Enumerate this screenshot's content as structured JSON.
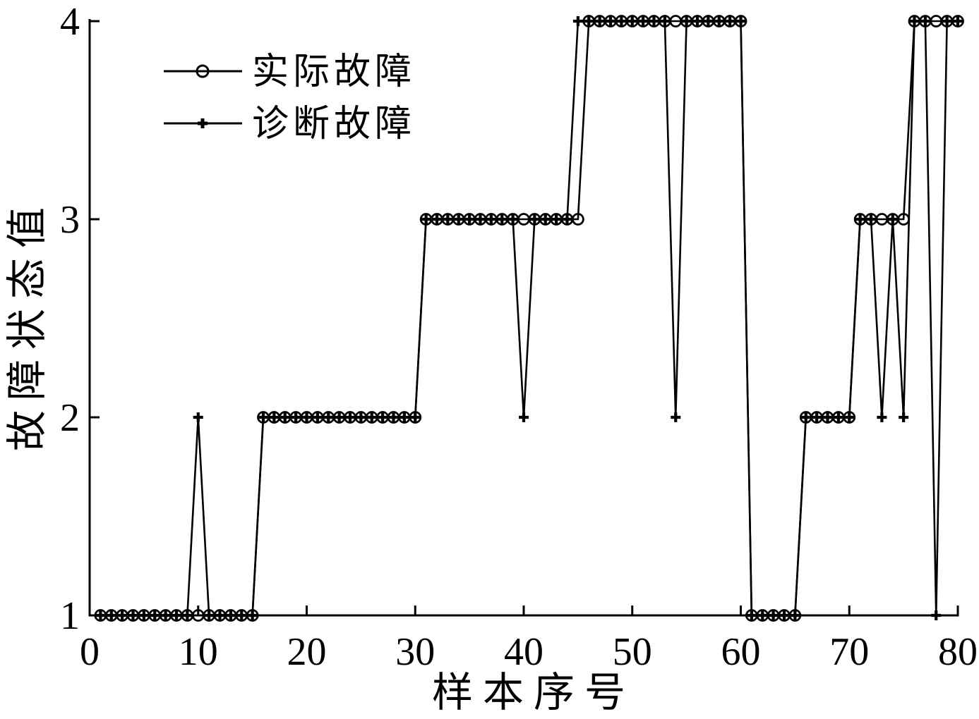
{
  "chart_data": {
    "type": "line",
    "title": "",
    "xlabel": "样本序号",
    "ylabel": "故障状态值",
    "xlim": [
      0,
      80
    ],
    "ylim": [
      1,
      4
    ],
    "x_ticks": [
      0,
      10,
      20,
      30,
      40,
      50,
      60,
      70,
      80
    ],
    "y_ticks": [
      1,
      2,
      3,
      4
    ],
    "grid": false,
    "legend_position": "top-left-inside",
    "line_color": "#000000",
    "background_color": "#ffffff",
    "x": [
      1,
      2,
      3,
      4,
      5,
      6,
      7,
      8,
      9,
      10,
      11,
      12,
      13,
      14,
      15,
      16,
      17,
      18,
      19,
      20,
      21,
      22,
      23,
      24,
      25,
      26,
      27,
      28,
      29,
      30,
      31,
      32,
      33,
      34,
      35,
      36,
      37,
      38,
      39,
      40,
      41,
      42,
      43,
      44,
      45,
      46,
      47,
      48,
      49,
      50,
      51,
      52,
      53,
      54,
      55,
      56,
      57,
      58,
      59,
      60,
      61,
      62,
      63,
      64,
      65,
      66,
      67,
      68,
      69,
      70,
      71,
      72,
      73,
      74,
      75,
      76,
      77,
      78,
      79,
      80
    ],
    "series": [
      {
        "name": "实际故障",
        "marker": "circle-marker",
        "values": [
          1,
          1,
          1,
          1,
          1,
          1,
          1,
          1,
          1,
          1,
          1,
          1,
          1,
          1,
          1,
          2,
          2,
          2,
          2,
          2,
          2,
          2,
          2,
          2,
          2,
          2,
          2,
          2,
          2,
          2,
          3,
          3,
          3,
          3,
          3,
          3,
          3,
          3,
          3,
          3,
          3,
          3,
          3,
          3,
          3,
          4,
          4,
          4,
          4,
          4,
          4,
          4,
          4,
          4,
          4,
          4,
          4,
          4,
          4,
          4,
          1,
          1,
          1,
          1,
          1,
          2,
          2,
          2,
          2,
          2,
          3,
          3,
          3,
          3,
          3,
          4,
          4,
          4,
          4,
          4
        ]
      },
      {
        "name": "诊断故障",
        "marker": "plus-marker",
        "values": [
          1,
          1,
          1,
          1,
          1,
          1,
          1,
          1,
          1,
          2,
          1,
          1,
          1,
          1,
          1,
          2,
          2,
          2,
          2,
          2,
          2,
          2,
          2,
          2,
          2,
          2,
          2,
          2,
          2,
          2,
          3,
          3,
          3,
          3,
          3,
          3,
          3,
          3,
          3,
          2,
          3,
          3,
          3,
          3,
          4,
          4,
          4,
          4,
          4,
          4,
          4,
          4,
          4,
          2,
          4,
          4,
          4,
          4,
          4,
          4,
          1,
          1,
          1,
          1,
          1,
          2,
          2,
          2,
          2,
          2,
          3,
          3,
          2,
          3,
          2,
          4,
          4,
          1,
          4,
          4
        ]
      }
    ]
  }
}
